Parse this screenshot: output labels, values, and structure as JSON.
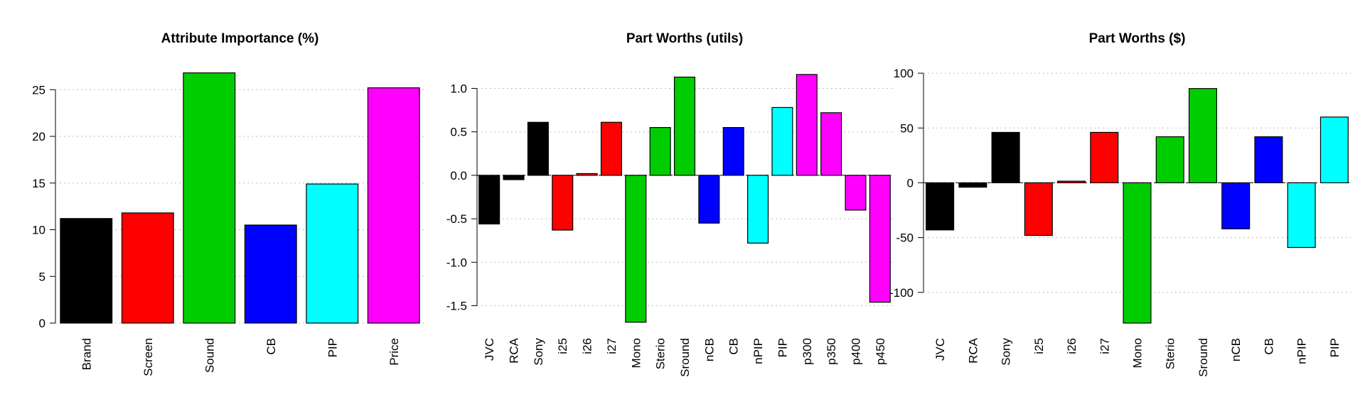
{
  "chart_data": [
    {
      "type": "bar",
      "title": "Attribute Importance (%)",
      "categories": [
        "Brand",
        "Screen",
        "Sound",
        "CB",
        "PIP",
        "Price"
      ],
      "values": [
        11.2,
        11.8,
        26.8,
        10.5,
        14.9,
        25.2
      ],
      "colors": [
        "#000000",
        "#ff0000",
        "#00cd00",
        "#0000ff",
        "#00ffff",
        "#ff00ff"
      ],
      "ylim": [
        0,
        27
      ],
      "yticks": [
        0,
        5,
        10,
        15,
        20,
        25
      ],
      "grid": true
    },
    {
      "type": "bar",
      "title": "Part Worths (utils)",
      "categories": [
        "JVC",
        "RCA",
        "Sony",
        "i25",
        "i26",
        "i27",
        "Mono",
        "Sterio",
        "Sround",
        "nCB",
        "CB",
        "nPIP",
        "PIP",
        "p300",
        "p350",
        "p400",
        "p450"
      ],
      "values": [
        -0.56,
        -0.05,
        0.61,
        -0.63,
        0.02,
        0.61,
        -1.69,
        0.55,
        1.13,
        -0.55,
        0.55,
        -0.78,
        0.78,
        1.16,
        0.72,
        -0.4,
        -1.46
      ],
      "colors": [
        "#000000",
        "#000000",
        "#000000",
        "#ff0000",
        "#ff0000",
        "#ff0000",
        "#00cd00",
        "#00cd00",
        "#00cd00",
        "#0000ff",
        "#0000ff",
        "#00ffff",
        "#00ffff",
        "#ff00ff",
        "#ff00ff",
        "#ff00ff",
        "#ff00ff"
      ],
      "ylim": [
        -1.7,
        1.2
      ],
      "yticks": [
        {
          "value": -1.5,
          "label": "-1.5"
        },
        {
          "value": -1,
          "label": "-1.0"
        },
        {
          "value": -0.5,
          "label": "-0.5"
        },
        {
          "value": 0,
          "label": "0.0"
        },
        {
          "value": 0.5,
          "label": "0.5"
        },
        {
          "value": 1,
          "label": "1.0"
        }
      ],
      "grid": true
    },
    {
      "type": "bar",
      "title": "Part Worths ($)",
      "categories": [
        "JVC",
        "RCA",
        "Sony",
        "i25",
        "i26",
        "i27",
        "Mono",
        "Sterio",
        "Sround",
        "nCB",
        "CB",
        "nPIP",
        "PIP"
      ],
      "values": [
        -43,
        -4,
        46,
        -48,
        1.5,
        46,
        -128,
        42,
        86,
        -42,
        42,
        -59,
        60
      ],
      "colors": [
        "#000000",
        "#000000",
        "#000000",
        "#ff0000",
        "#ff0000",
        "#ff0000",
        "#00cd00",
        "#00cd00",
        "#00cd00",
        "#0000ff",
        "#0000ff",
        "#00ffff",
        "#00ffff"
      ],
      "ylim": [
        -128,
        102
      ],
      "yticks": [
        -100,
        -50,
        0,
        50,
        100
      ],
      "grid": true
    }
  ]
}
